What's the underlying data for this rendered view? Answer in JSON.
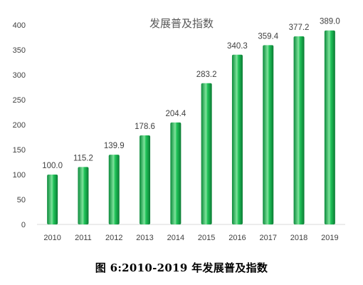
{
  "caption": "图 6:2010-2019 年发展普及指数",
  "colors": {
    "bar_dark": "#0a8a3a",
    "bar_mid": "#21c45a",
    "bar_light": "#7ee39b",
    "axis": "#d9d9d9",
    "text": "#404040"
  },
  "chart_data": {
    "type": "bar",
    "title": "发展普及指数",
    "categories": [
      "2010",
      "2011",
      "2012",
      "2013",
      "2014",
      "2015",
      "2016",
      "2017",
      "2018",
      "2019"
    ],
    "values": [
      100.0,
      115.2,
      139.9,
      178.6,
      204.4,
      283.2,
      340.3,
      359.4,
      377.2,
      389.0
    ],
    "value_labels": [
      "100.0",
      "115.2",
      "139.9",
      "178.6",
      "204.4",
      "283.2",
      "340.3",
      "359.4",
      "377.2",
      "389.0"
    ],
    "ylim": [
      0,
      400
    ],
    "yticks": [
      "0",
      "50",
      "100",
      "150",
      "200",
      "250",
      "300",
      "350",
      "400"
    ],
    "xlabel": "",
    "ylabel": "",
    "grid": false,
    "legend": "none"
  }
}
